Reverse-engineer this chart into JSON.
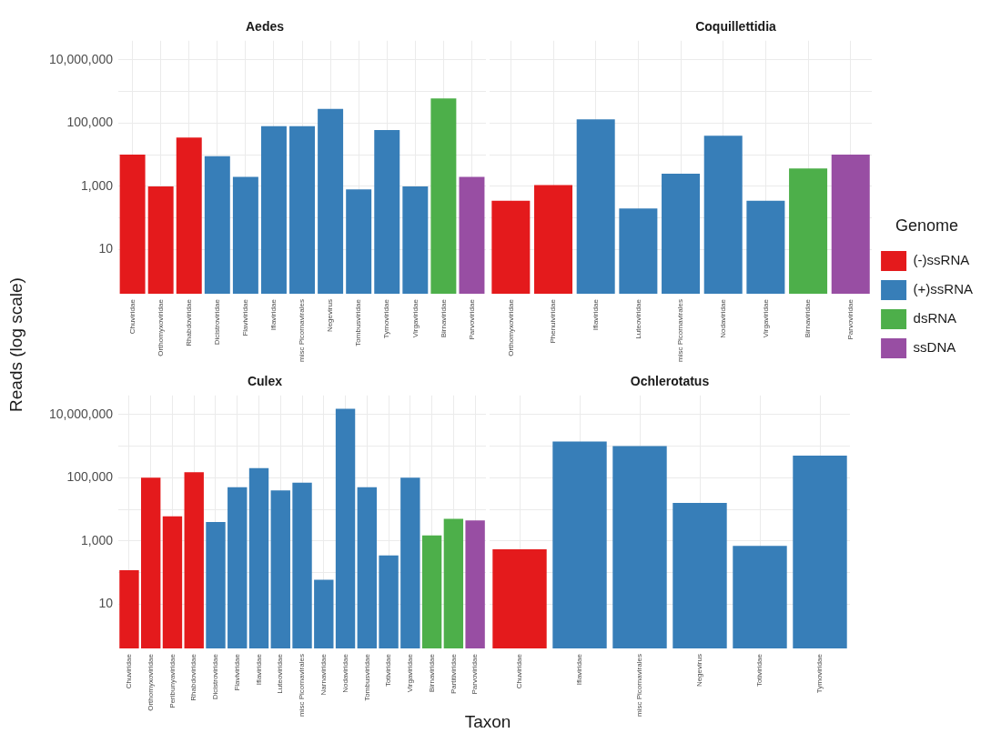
{
  "chart_data": [
    {
      "type": "bar",
      "title": "Aedes",
      "ylabel": "Reads (log scale)",
      "categories": [
        "Chuviridae",
        "Orthomyxoviridae",
        "Rhabdoviridae",
        "Dicistroviridae",
        "Flaviviridae",
        "Iflaviridae",
        "misc Picornavirales",
        "Negevirus",
        "Tombusviridae",
        "Tymoviridae",
        "Virgaviridae",
        "Birnaviridae",
        "Parvoviridae"
      ],
      "series": [
        {
          "color": "#e41a1c",
          "values": [
            10000,
            1000,
            35000,
            null,
            null,
            null,
            null,
            null,
            null,
            null,
            null,
            null,
            null
          ]
        },
        {
          "color": "#377eb8",
          "values": [
            null,
            null,
            null,
            9000,
            2000,
            80000,
            80000,
            280000,
            800,
            60000,
            1000,
            null,
            null
          ]
        },
        {
          "color": "#4daf4a",
          "values": [
            null,
            null,
            null,
            null,
            null,
            null,
            null,
            null,
            null,
            null,
            null,
            600000,
            null
          ]
        },
        {
          "color": "#984ea3",
          "values": [
            null,
            null,
            null,
            null,
            null,
            null,
            null,
            null,
            null,
            null,
            null,
            null,
            2000
          ]
        }
      ],
      "log": true,
      "ylim": [
        0.4,
        40000000
      ],
      "yticks": [
        {
          "value": 10,
          "label": "10"
        },
        {
          "value": 100,
          "label": null
        },
        {
          "value": 1000,
          "label": "1,000"
        },
        {
          "value": 10000,
          "label": null
        },
        {
          "value": 100000,
          "label": "100,000"
        },
        {
          "value": 1000000,
          "label": null
        },
        {
          "value": 10000000,
          "label": "10,000,000"
        }
      ],
      "grid": true
    },
    {
      "type": "bar",
      "title": "Coquillettidia",
      "legend": "right",
      "legend_title": "Genome",
      "categories": [
        "Orthomyxoviridae",
        "Phenuiviridae",
        "Iflaviridae",
        "Luteoviridae",
        "misc Picornavirales",
        "Nodaviridae",
        "Virgaviridae",
        "Birnaviridae",
        "Parvoviridae"
      ],
      "series": [
        {
          "name": "(-)ssRNA",
          "color": "#e41a1c",
          "values": [
            350,
            1100,
            null,
            null,
            null,
            null,
            null,
            null,
            null
          ]
        },
        {
          "name": "(+)ssRNA",
          "color": "#377eb8",
          "values": [
            null,
            null,
            130000,
            200,
            2500,
            40000,
            350,
            null,
            null
          ]
        },
        {
          "name": "dsRNA",
          "color": "#4daf4a",
          "values": [
            null,
            null,
            null,
            null,
            null,
            null,
            null,
            3700,
            null
          ]
        },
        {
          "name": "ssDNA",
          "color": "#984ea3",
          "values": [
            null,
            null,
            null,
            null,
            null,
            null,
            null,
            null,
            10000
          ]
        }
      ],
      "log": true,
      "ylim": [
        0.4,
        40000000
      ],
      "yticks": [
        {
          "value": 10,
          "label": null
        },
        {
          "value": 100,
          "label": null
        },
        {
          "value": 1000,
          "label": null
        },
        {
          "value": 10000,
          "label": null
        },
        {
          "value": 100000,
          "label": null
        },
        {
          "value": 1000000,
          "label": null
        },
        {
          "value": 10000000,
          "label": null
        }
      ],
      "grid": true,
      "tick_labels": "x"
    },
    {
      "type": "bar",
      "title": "Culex",
      "xlabel": "Taxon",
      "categories": [
        "Chuviridae",
        "Orthomyxoviridae",
        "Peribunyaviridae",
        "Rhabdoviridae",
        "Dicistroviridae",
        "Flaviviridae",
        "Iflaviridae",
        "Luteoviridae",
        "misc Picornavirales",
        "Narnaviridae",
        "Nodaviridae",
        "Tombusviridae",
        "Totiviridae",
        "Virgaviridae",
        "Birnaviridae",
        "Partitiviridae",
        "Parvoviridae"
      ],
      "series": [
        {
          "color": "#e41a1c",
          "values": [
            120,
            100000,
            6000,
            150000,
            null,
            null,
            null,
            null,
            null,
            null,
            null,
            null,
            null,
            null,
            null,
            null,
            null
          ]
        },
        {
          "color": "#377eb8",
          "values": [
            null,
            null,
            null,
            null,
            4000,
            50000,
            200000,
            40000,
            70000,
            60,
            15000000,
            50000,
            350,
            100000,
            null,
            null,
            null
          ]
        },
        {
          "color": "#4daf4a",
          "values": [
            null,
            null,
            null,
            null,
            null,
            null,
            null,
            null,
            null,
            null,
            null,
            null,
            null,
            null,
            1500,
            5000,
            null
          ]
        },
        {
          "color": "#984ea3",
          "values": [
            null,
            null,
            null,
            null,
            null,
            null,
            null,
            null,
            null,
            null,
            null,
            null,
            null,
            null,
            null,
            null,
            4500
          ]
        }
      ],
      "log": true,
      "ylim": [
        0.4,
        40000000
      ],
      "yticks": [
        {
          "value": 10,
          "label": "10"
        },
        {
          "value": 100,
          "label": null
        },
        {
          "value": 1000,
          "label": "1,000"
        },
        {
          "value": 10000,
          "label": null
        },
        {
          "value": 100000,
          "label": "100,000"
        },
        {
          "value": 1000000,
          "label": null
        },
        {
          "value": 10000000,
          "label": "10,000,000"
        }
      ],
      "grid": true
    },
    {
      "type": "bar",
      "title": "Ochlerotatus",
      "categories": [
        "Chuviridae",
        "Iflaviridae",
        "misc Picornavirales",
        "Negevirus",
        "Totiviridae",
        "Tymoviridae"
      ],
      "series": [
        {
          "color": "#e41a1c",
          "values": [
            550,
            null,
            null,
            null,
            null,
            null
          ]
        },
        {
          "color": "#377eb8",
          "values": [
            null,
            1400000,
            1000000,
            16000,
            700,
            500000
          ]
        }
      ],
      "log": true,
      "ylim": [
        0.4,
        40000000
      ],
      "yticks": [
        {
          "value": 10,
          "label": null
        },
        {
          "value": 100,
          "label": null
        },
        {
          "value": 1000,
          "label": null
        },
        {
          "value": 10000,
          "label": null
        },
        {
          "value": 100000,
          "label": null
        },
        {
          "value": 1000000,
          "label": null
        },
        {
          "value": 10000000,
          "label": null
        }
      ],
      "grid": true,
      "tick_labels": "x"
    }
  ]
}
